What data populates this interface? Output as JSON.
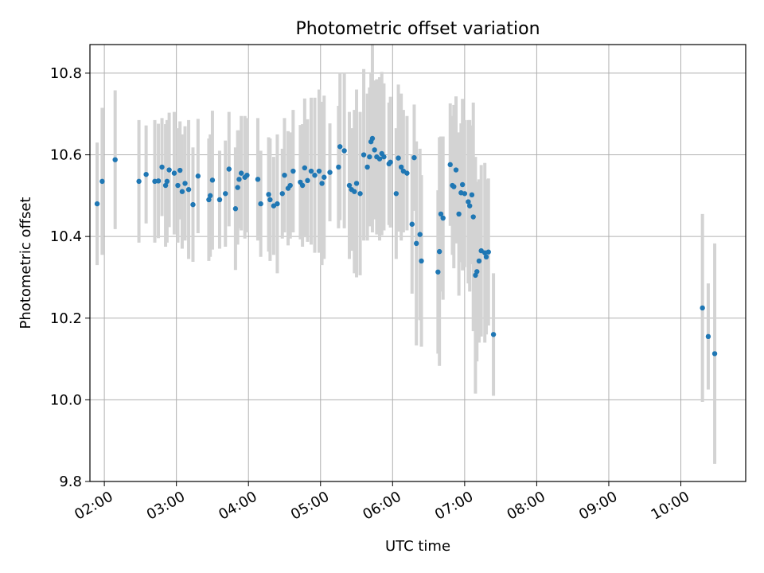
{
  "chart_data": {
    "type": "scatter",
    "title": "Photometric offset variation",
    "xlabel": "UTC time",
    "ylabel": "Photometric offset",
    "x_unit": "hours UTC",
    "xlim": [
      1.8,
      10.9
    ],
    "ylim": [
      9.8,
      10.87
    ],
    "grid": true,
    "x_ticks": [
      {
        "value": 2,
        "label": "02:00"
      },
      {
        "value": 3,
        "label": "03:00"
      },
      {
        "value": 4,
        "label": "04:00"
      },
      {
        "value": 5,
        "label": "05:00"
      },
      {
        "value": 6,
        "label": "06:00"
      },
      {
        "value": 7,
        "label": "07:00"
      },
      {
        "value": 8,
        "label": "08:00"
      },
      {
        "value": 9,
        "label": "09:00"
      },
      {
        "value": 10,
        "label": "10:00"
      }
    ],
    "y_ticks": [
      {
        "value": 9.8,
        "label": "9.8"
      },
      {
        "value": 10.0,
        "label": "10.0"
      },
      {
        "value": 10.2,
        "label": "10.2"
      },
      {
        "value": 10.4,
        "label": "10.4"
      },
      {
        "value": 10.6,
        "label": "10.6"
      },
      {
        "value": 10.8,
        "label": "10.8"
      }
    ],
    "colors": {
      "point": "#1f77b4",
      "errorbar": "#d3d3d3",
      "grid": "#b0b0b0"
    },
    "series": [
      {
        "x": [
          1.9,
          1.97,
          2.15,
          2.48,
          2.58,
          2.7,
          2.75,
          2.8,
          2.85,
          2.87,
          2.9,
          2.97,
          3.02,
          3.05,
          3.08,
          3.12,
          3.17,
          3.23,
          3.3,
          3.45,
          3.47,
          3.5,
          3.6,
          3.68,
          3.73,
          3.82,
          3.85,
          3.87,
          3.9,
          3.95,
          3.98,
          4.13,
          4.17,
          4.28,
          4.3,
          4.35,
          4.4,
          4.47,
          4.5,
          4.55,
          4.58,
          4.62,
          4.72,
          4.75,
          4.78,
          4.82,
          4.87,
          4.92,
          4.98,
          5.02,
          5.05,
          5.13,
          5.25,
          5.27,
          5.33,
          5.4,
          5.43,
          5.47,
          5.5,
          5.55,
          5.6,
          5.65,
          5.68,
          5.7,
          5.72,
          5.75,
          5.78,
          5.82,
          5.85,
          5.88,
          5.95,
          5.97,
          6.05,
          6.08,
          6.12,
          6.15,
          6.2,
          6.27,
          6.3,
          6.33,
          6.38,
          6.4,
          6.63,
          6.65,
          6.67,
          6.7,
          6.8,
          6.83,
          6.85,
          6.88,
          6.92,
          6.95,
          6.97,
          7.0,
          7.05,
          7.07,
          7.1,
          7.12,
          7.15,
          7.17,
          7.2,
          7.23,
          7.28,
          7.3,
          7.33,
          7.4,
          10.3,
          10.38,
          10.47
        ],
        "y": [
          10.48,
          10.535,
          10.588,
          10.535,
          10.552,
          10.535,
          10.536,
          10.57,
          10.525,
          10.535,
          10.563,
          10.555,
          10.525,
          10.562,
          10.51,
          10.53,
          10.515,
          10.478,
          10.548,
          10.49,
          10.5,
          10.538,
          10.49,
          10.505,
          10.565,
          10.468,
          10.52,
          10.54,
          10.555,
          10.545,
          10.55,
          10.54,
          10.48,
          10.503,
          10.49,
          10.475,
          10.48,
          10.505,
          10.55,
          10.518,
          10.525,
          10.56,
          10.533,
          10.525,
          10.568,
          10.537,
          10.56,
          10.55,
          10.56,
          10.53,
          10.545,
          10.557,
          10.57,
          10.62,
          10.61,
          10.525,
          10.515,
          10.51,
          10.53,
          10.505,
          10.6,
          10.57,
          10.595,
          10.632,
          10.64,
          10.612,
          10.595,
          10.59,
          10.603,
          10.595,
          10.578,
          10.582,
          10.505,
          10.592,
          10.57,
          10.56,
          10.555,
          10.43,
          10.593,
          10.383,
          10.405,
          10.34,
          10.313,
          10.363,
          10.455,
          10.445,
          10.576,
          10.525,
          10.522,
          10.563,
          10.455,
          10.507,
          10.527,
          10.505,
          10.485,
          10.475,
          10.502,
          10.448,
          10.305,
          10.314,
          10.34,
          10.365,
          10.36,
          10.35,
          10.362,
          10.16,
          10.225,
          10.155,
          10.113
        ],
        "err": [
          0.15,
          0.18,
          0.17,
          0.15,
          0.12,
          0.15,
          0.14,
          0.12,
          0.15,
          0.15,
          0.14,
          0.15,
          0.14,
          0.12,
          0.14,
          0.14,
          0.17,
          0.14,
          0.14,
          0.15,
          0.15,
          0.17,
          0.12,
          0.13,
          0.14,
          0.15,
          0.14,
          0.12,
          0.14,
          0.15,
          0.14,
          0.15,
          0.13,
          0.14,
          0.15,
          0.12,
          0.17,
          0.11,
          0.14,
          0.14,
          0.13,
          0.15,
          0.14,
          0.15,
          0.17,
          0.15,
          0.18,
          0.19,
          0.2,
          0.2,
          0.2,
          0.12,
          0.15,
          0.18,
          0.19,
          0.18,
          0.15,
          0.2,
          0.23,
          0.2,
          0.21,
          0.18,
          0.17,
          0.17,
          0.23,
          0.17,
          0.19,
          0.2,
          0.2,
          0.18,
          0.15,
          0.16,
          0.16,
          0.18,
          0.18,
          0.15,
          0.14,
          0.17,
          0.13,
          0.25,
          0.21,
          0.21,
          0.2,
          0.28,
          0.19,
          0.2,
          0.15,
          0.17,
          0.2,
          0.18,
          0.2,
          0.17,
          0.21,
          0.18,
          0.2,
          0.21,
          0.17,
          0.28,
          0.29,
          0.22,
          0.2,
          0.21,
          0.22,
          0.19,
          0.18,
          0.15,
          0.23,
          0.13,
          0.27
        ]
      }
    ]
  }
}
